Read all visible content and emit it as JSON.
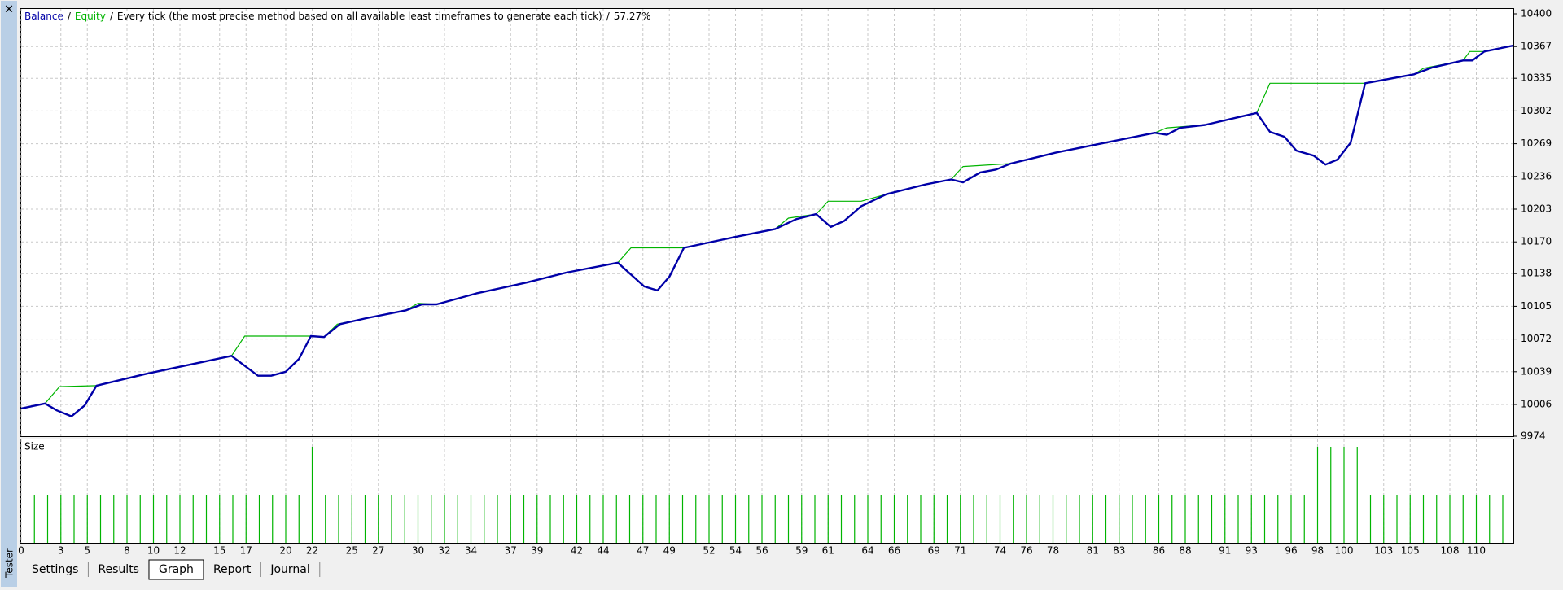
{
  "window": {
    "close": "×",
    "side_label": "Tester"
  },
  "chart_data": [
    {
      "type": "line",
      "subtitle": "Every tick (the most precise method based on all available least timeframes to generate each tick)",
      "quality": "57.27%",
      "separator": "/",
      "xlim": [
        0,
        112.8
      ],
      "xticks": [
        0,
        3,
        5,
        8,
        10,
        12,
        15,
        17,
        20,
        22,
        25,
        27,
        30,
        32,
        34,
        37,
        39,
        42,
        44,
        47,
        49,
        52,
        54,
        56,
        59,
        61,
        64,
        66,
        69,
        71,
        74,
        76,
        78,
        81,
        83,
        86,
        88,
        91,
        93,
        96,
        98,
        100,
        103,
        105,
        108,
        110
      ],
      "ylim": [
        9974,
        10400
      ],
      "yticks": [
        10400,
        10367,
        10335,
        10302,
        10269,
        10236,
        10203,
        10170,
        10138,
        10105,
        10072,
        10039,
        10006,
        9974
      ],
      "grid": true,
      "series": [
        {
          "name": "Balance",
          "color": "#0000a8",
          "x": [
            0,
            1.8,
            2.7,
            3.8,
            4.8,
            5.7,
            9.5,
            15.9,
            17.9,
            18.9,
            20,
            21,
            21.9,
            22.9,
            24.1,
            26.1,
            29.1,
            30.3,
            31.4,
            34.4,
            38.2,
            41.2,
            45.1,
            47.1,
            48.1,
            49,
            50.1,
            54,
            57,
            58.6,
            60.1,
            61.2,
            62.2,
            63.5,
            65.4,
            68.4,
            70.3,
            71.2,
            72.5,
            73.7,
            74.8,
            78.2,
            81.2,
            85.7,
            86.6,
            87.6,
            89.5,
            93.4,
            94.4,
            95.5,
            96.4,
            97.7,
            98.6,
            99.5,
            100.5,
            101.6,
            105.3,
            106.7,
            109,
            109.7,
            110.6,
            112.8
          ],
          "values": [
            10002,
            10007,
            10000,
            9994,
            10005,
            10025,
            10037,
            10055,
            10035,
            10035,
            10039,
            10052,
            10075,
            10074,
            10087,
            10093,
            10101,
            10107,
            10107,
            10118,
            10129,
            10139,
            10149,
            10125,
            10121,
            10135,
            10164,
            10175,
            10183,
            10193,
            10198,
            10185,
            10191,
            10206,
            10218,
            10228,
            10233,
            10230,
            10240,
            10243,
            10249,
            10260,
            10268,
            10280,
            10278,
            10285,
            10288,
            10300,
            10281,
            10276,
            10262,
            10257,
            10248,
            10253,
            10270,
            10330,
            10339,
            10346,
            10353,
            10353,
            10362,
            10368
          ]
        },
        {
          "name": "Equity",
          "color": "#00b400",
          "x": [
            0,
            1.8,
            2.9,
            5.7,
            9.5,
            15.9,
            16.9,
            21.9,
            22.9,
            23.9,
            26.1,
            29.1,
            30,
            31.4,
            34.4,
            38.2,
            41.2,
            45.1,
            46.1,
            50.1,
            54,
            57,
            58,
            60.1,
            61,
            63.5,
            65.4,
            68.4,
            70.3,
            71.2,
            74.8,
            78.2,
            81.2,
            85.7,
            86.6,
            89.5,
            93.4,
            94.4,
            101.6,
            105.3,
            106,
            109,
            109.5,
            110.6,
            112.8
          ],
          "values": [
            10002,
            10007,
            10024,
            10025,
            10037,
            10055,
            10075,
            10075,
            10074,
            10087,
            10093,
            10101,
            10108,
            10107,
            10118,
            10129,
            10139,
            10149,
            10164,
            10164,
            10175,
            10183,
            10194,
            10198,
            10211,
            10211,
            10218,
            10228,
            10233,
            10246,
            10249,
            10260,
            10268,
            10280,
            10285,
            10288,
            10300,
            10330,
            10330,
            10339,
            10345,
            10353,
            10362,
            10362,
            10368
          ]
        }
      ]
    },
    {
      "type": "bar",
      "title": "Size",
      "color": "#00b400",
      "values": [
        1,
        1,
        1,
        1,
        1,
        1,
        1,
        1,
        1,
        1,
        1,
        1,
        1,
        1,
        1,
        1,
        1,
        1,
        1,
        1,
        1,
        2,
        1,
        1,
        1,
        1,
        1,
        1,
        1,
        1,
        1,
        1,
        1,
        1,
        1,
        1,
        1,
        1,
        1,
        1,
        1,
        1,
        1,
        1,
        1,
        1,
        1,
        1,
        1,
        1,
        1,
        1,
        1,
        1,
        1,
        1,
        1,
        1,
        1,
        1,
        1,
        1,
        1,
        1,
        1,
        1,
        1,
        1,
        1,
        1,
        1,
        1,
        1,
        1,
        1,
        1,
        1,
        1,
        1,
        1,
        1,
        1,
        1,
        1,
        1,
        1,
        1,
        1,
        1,
        1,
        1,
        1,
        1,
        1,
        1,
        1,
        1,
        2,
        2,
        2,
        2,
        1,
        1,
        1,
        1,
        1,
        1,
        1,
        1,
        1,
        1,
        1
      ]
    }
  ],
  "tabs": [
    {
      "label": "Settings",
      "active": false
    },
    {
      "label": "Results",
      "active": false
    },
    {
      "label": "Graph",
      "active": true
    },
    {
      "label": "Report",
      "active": false
    },
    {
      "label": "Journal",
      "active": false
    }
  ]
}
